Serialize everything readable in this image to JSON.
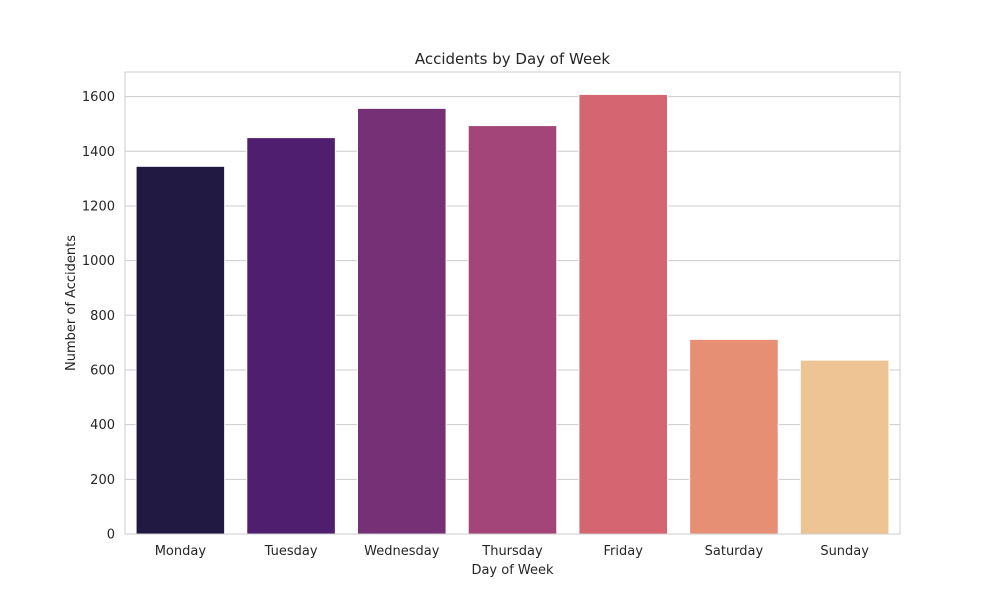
{
  "chart_data": {
    "type": "bar",
    "title": "Accidents by Day of Week",
    "xlabel": "Day of Week",
    "ylabel": "Number of Accidents",
    "categories": [
      "Monday",
      "Tuesday",
      "Wednesday",
      "Thursday",
      "Friday",
      "Saturday",
      "Sunday"
    ],
    "values": [
      1345,
      1450,
      1557,
      1494,
      1608,
      712,
      636
    ],
    "ylim": [
      0,
      1690
    ],
    "yticks": [
      0,
      200,
      400,
      600,
      800,
      1000,
      1200,
      1400,
      1600
    ],
    "ytick_labels": [
      "0",
      "200",
      "400",
      "600",
      "800",
      "1000",
      "1200",
      "1400",
      "1600"
    ],
    "grid": "horizontal",
    "legend": "none",
    "colors": [
      "#221942",
      "#4f1e6e",
      "#763076",
      "#a4457a",
      "#d46571",
      "#e78f74",
      "#efc495"
    ]
  }
}
